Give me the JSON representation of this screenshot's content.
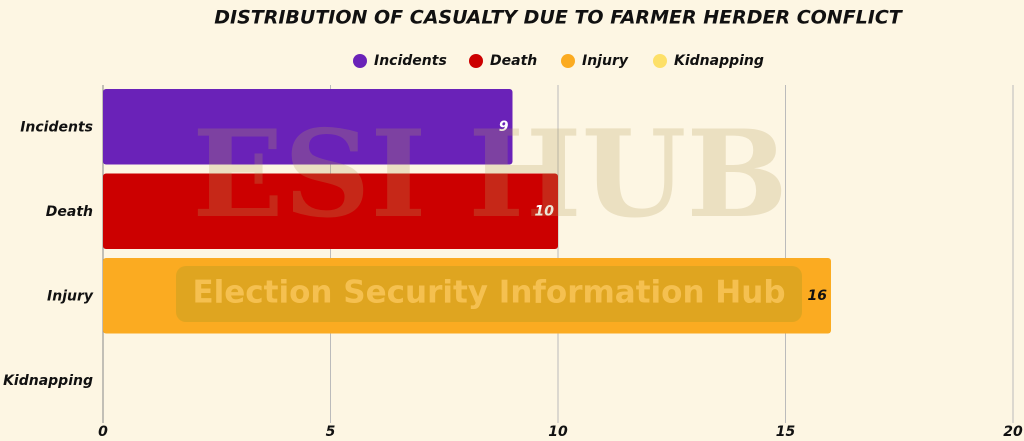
{
  "chart_data": {
    "type": "barh",
    "title": "DISTRIBUTION OF CASUALTY DUE TO FARMER HERDER CONFLICT",
    "categories": [
      "Incidents",
      "Death",
      "Injury",
      "Kidnapping"
    ],
    "values": [
      9,
      10,
      16,
      null
    ],
    "colors": [
      "#6a22b8",
      "#cc0000",
      "#fbab21",
      "#fde068"
    ],
    "value_label_colors": [
      "#ffffff",
      "#ffffff",
      "#111111",
      "#111111"
    ],
    "xlim": [
      0,
      20
    ],
    "xticks": [
      0,
      5,
      10,
      15,
      20
    ],
    "grid": true,
    "legend": "top",
    "watermark": {
      "logo": "ESI HUB",
      "text": "Election Security Information Hub"
    }
  }
}
